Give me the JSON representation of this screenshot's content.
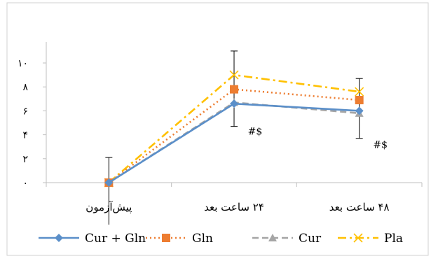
{
  "chart_data": {
    "type": "line",
    "categories": [
      "پیش‌آزمون",
      "۲۴ ساعت بعد",
      "۴۸ ساعت بعد"
    ],
    "ylim": [
      0,
      10
    ],
    "yticks": [
      0,
      2,
      4,
      6,
      8,
      10
    ],
    "ytick_labels": [
      "۰",
      "۲",
      "۴",
      "۶",
      "۸",
      "۱۰"
    ],
    "grid": false,
    "legend_position": "bottom",
    "series": [
      {
        "name": "Cur + Gln",
        "values": [
          0,
          6.6,
          6.0
        ],
        "color": "#5b8fc9",
        "marker": "diamond",
        "dash": "solid"
      },
      {
        "name": "Gln",
        "values": [
          0,
          7.8,
          6.9
        ],
        "color": "#ed7d31",
        "marker": "square",
        "dash": "dot"
      },
      {
        "name": "Cur",
        "values": [
          0,
          6.7,
          5.8
        ],
        "color": "#a5a5a5",
        "marker": "triangle",
        "dash": "dash"
      },
      {
        "name": "Pla",
        "values": [
          0,
          9.0,
          7.6
        ],
        "color": "#ffc000",
        "marker": "x",
        "dash": "dashdot"
      }
    ],
    "error_bars": [
      {
        "category_index": 0,
        "low": -5,
        "high": 2.1
      },
      {
        "category_index": 1,
        "low": 4.7,
        "high": 11.0
      },
      {
        "category_index": 2,
        "low": 3.7,
        "high": 8.7
      }
    ],
    "annotations": [
      {
        "text": "#$",
        "category_index": 1,
        "y": 4.0
      },
      {
        "text": "#$",
        "category_index": 2,
        "y": 2.9
      }
    ]
  }
}
